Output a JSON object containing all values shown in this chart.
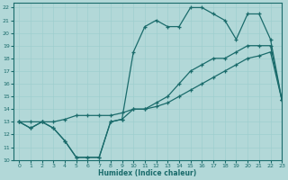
{
  "xlabel": "Humidex (Indice chaleur)",
  "bg_color": "#b2d8d8",
  "line_color": "#1a6b6b",
  "grid_color": "#9ecece",
  "xlim": [
    -0.5,
    23
  ],
  "ylim": [
    10,
    22.4
  ],
  "xticks": [
    0,
    1,
    2,
    3,
    4,
    5,
    6,
    7,
    8,
    9,
    10,
    11,
    12,
    13,
    14,
    15,
    16,
    17,
    18,
    19,
    20,
    21,
    22,
    23
  ],
  "yticks": [
    10,
    11,
    12,
    13,
    14,
    15,
    16,
    17,
    18,
    19,
    20,
    21,
    22
  ],
  "curve1_x": [
    0,
    1,
    2,
    3,
    4,
    5,
    6,
    7,
    8,
    9,
    10,
    11,
    12,
    13,
    14,
    15,
    16,
    17,
    18,
    19,
    20,
    21,
    22,
    23
  ],
  "curve1_y": [
    13,
    12.5,
    13,
    12.5,
    11.5,
    10.2,
    10.2,
    10.2,
    13,
    13.2,
    14,
    14,
    14.5,
    15,
    16,
    17,
    17.5,
    18,
    18,
    18.5,
    19,
    19,
    19,
    14.7
  ],
  "curve2_x": [
    0,
    1,
    2,
    3,
    4,
    5,
    6,
    7,
    8,
    9,
    10,
    11,
    12,
    13,
    14,
    15,
    16,
    17,
    18,
    19,
    20,
    21,
    22,
    23
  ],
  "curve2_y": [
    13,
    13,
    13,
    13,
    13.2,
    13.5,
    13.5,
    13.5,
    13.5,
    13.7,
    14,
    14,
    14.2,
    14.5,
    15,
    15.5,
    16,
    16.5,
    17,
    17.5,
    18,
    18.2,
    18.5,
    14.7
  ],
  "curve3_x": [
    0,
    1,
    2,
    3,
    4,
    5,
    6,
    7,
    8,
    9,
    10,
    11,
    12,
    13,
    14,
    15,
    16,
    17,
    18,
    19,
    20,
    21,
    22,
    23
  ],
  "curve3_y": [
    13,
    12.5,
    13,
    12.5,
    11.5,
    10.2,
    10.2,
    10.2,
    13,
    13.2,
    18.5,
    20.5,
    21,
    20.5,
    20.5,
    22,
    22,
    21.5,
    21,
    19.5,
    21.5,
    21.5,
    19.5,
    14.7
  ]
}
